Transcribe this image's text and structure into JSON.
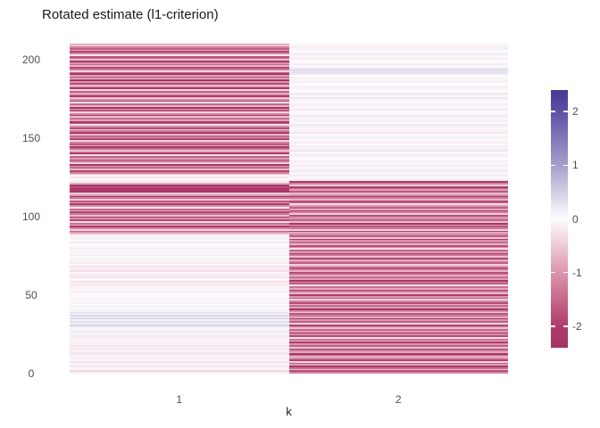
{
  "title": "Rotated estimate (l1-criterion)",
  "chart_data": {
    "type": "heatmap",
    "title": "Rotated estimate (l1-criterion)",
    "xlabel": "k",
    "ylabel": "",
    "categories": [
      "1",
      "2"
    ],
    "n_rows": 208,
    "ylim": [
      0,
      210.5
    ],
    "y_tick_labels": [
      "0",
      "50",
      "100",
      "150",
      "200"
    ],
    "y_tick_values": [
      0,
      50,
      100,
      150,
      200
    ],
    "grid": "off",
    "legend_position": "right",
    "colorscale_stops": [
      [
        -2.4,
        "#A23563"
      ],
      [
        -2.0,
        "#AE3C6A"
      ],
      [
        -1.0,
        "#DC95AE"
      ],
      [
        0.0,
        "#FEFCFE"
      ],
      [
        1.0,
        "#A69FCC"
      ],
      [
        2.0,
        "#5C51A4"
      ],
      [
        2.4,
        "#453A93"
      ]
    ],
    "series": [
      {
        "name": "k=1",
        "values": [
          -0.15,
          -0.35,
          -0.1,
          0.05,
          -0.2,
          0.1,
          -0.05,
          -0.25,
          0.05,
          -0.15,
          0.1,
          -0.1,
          0.2,
          -0.2,
          0.05,
          -0.3,
          -0.1,
          -0.25,
          0.1,
          -0.15,
          0.05,
          -0.1,
          0.15,
          -0.2,
          0.1,
          -0.05,
          0.2,
          0.05,
          -0.1,
          0.25,
          0.4,
          0.15,
          0.3,
          0.1,
          0.45,
          0.2,
          0.35,
          0.15,
          0.3,
          0.1,
          0.05,
          -0.05,
          0.1,
          0,
          -0.1,
          0.05,
          -0.05,
          0.1,
          0,
          -0.05,
          0.05,
          -0.15,
          0,
          0.1,
          -0.05,
          -0.2,
          -0.1,
          -0.3,
          -0.15,
          -0.05,
          -0.25,
          -0.1,
          -0.2,
          -0.05,
          -0.3,
          -0.15,
          -0.1,
          -0.25,
          -0.05,
          -0.2,
          0.05,
          -0.1,
          0.1,
          -0.05,
          0.15,
          0,
          -0.1,
          0.05,
          -0.15,
          0.1,
          -0.05,
          0,
          -0.2,
          0.05,
          -0.1,
          0.15,
          -0.05,
          -0.3,
          -0.9,
          -1.6,
          -0.4,
          -1.2,
          -2,
          -0.7,
          -1.4,
          -0.3,
          -1.8,
          -1,
          -2.2,
          -0.6,
          -1.3,
          -1.9,
          -0.8,
          -1.5,
          -0.2,
          -1.1,
          -2.1,
          -0.9,
          -1.7,
          -0.5,
          -1.3,
          -2.3,
          -1,
          -0.4,
          -2.2,
          -2,
          -2.3,
          -1.8,
          -2.1,
          -0.8,
          -0.15,
          -0.1,
          -0.05,
          -0.2,
          -0.1,
          -0.5,
          -1.2,
          -1.9,
          -0.7,
          -1.5,
          -1,
          -2.2,
          -0.4,
          -1.3,
          -1.8,
          -0.9,
          -1.6,
          -0.3,
          -2,
          -1.1,
          -0.6,
          -1.4,
          -2.2,
          -0.8,
          -1.7,
          -1.2,
          -0.4,
          -1.9,
          -1,
          -1.5,
          -0.7,
          -2.1,
          -1.3,
          -0.5,
          -1.8,
          -1.1,
          -0.3,
          -1.6,
          -2.3,
          -0.9,
          -1.4,
          -0.6,
          -2,
          -1.2,
          -0.4,
          -1.7,
          -1,
          -2.2,
          -0.7,
          -1.5,
          -0.2,
          -1.9,
          -1.1,
          -0.5,
          -2.1,
          -1.3,
          -0.8,
          -1.6,
          -0.3,
          -2,
          -1.2,
          -0.6,
          -1.8,
          -1,
          -2.3,
          -0.5,
          -1.4,
          -0.9,
          -2.1,
          -1.6,
          -0.4,
          -1.2,
          -1.9,
          -0.7,
          -1.5,
          -1,
          -2.2,
          -0.6,
          -1.3,
          -1.8,
          -0.2,
          -1.1,
          -2,
          -0.8,
          -1.6,
          -1.2,
          -0.5,
          -1
        ]
      },
      {
        "name": "k=2",
        "values": [
          -1.2,
          -1.8,
          -0.6,
          -1.4,
          -2.1,
          -0.9,
          -1.6,
          -0.4,
          -1.9,
          -1.1,
          -0.7,
          -1.5,
          -2.2,
          -0.8,
          -1.3,
          -1.9,
          -0.5,
          -1.6,
          -1,
          -2,
          -0.7,
          -1.4,
          -0.3,
          -1.8,
          -1.1,
          -2.2,
          -0.9,
          -1.5,
          -0.6,
          -1.2,
          -1.9,
          -0.4,
          -1.6,
          -1,
          -2.1,
          -0.8,
          -1.3,
          -1.7,
          -0.5,
          -1.1,
          -2.3,
          -0.9,
          -1.5,
          -0.7,
          -1.8,
          -1.2,
          -0.4,
          -1.6,
          -1,
          -2,
          -0.6,
          -1.3,
          -1.9,
          -0.8,
          -1.4,
          -0.3,
          -1.7,
          -1.1,
          -2.2,
          -0.9,
          -1.5,
          -0.5,
          -1.2,
          -1.8,
          -0.7,
          -1.4,
          -2.1,
          -1,
          -0.4,
          -1.6,
          -1.2,
          -0.8,
          -1.9,
          -0.6,
          -1.3,
          -2.2,
          -0.9,
          -1.5,
          -0.3,
          -1.1,
          -1.8,
          -0.7,
          -1.4,
          -1,
          -2,
          -0.5,
          -1.6,
          -1.2,
          -0.8,
          -1.9,
          -0.4,
          -1.3,
          -1.7,
          -1,
          -2.3,
          -0.6,
          -1.5,
          -1.1,
          -0.9,
          -1.8,
          -0.5,
          -1.2,
          -2.1,
          -0.8,
          -1.6,
          -1,
          -0.3,
          -1.4,
          -1.9,
          -0.7,
          -1.3,
          -2.2,
          -1.1,
          -0.6,
          -1.7,
          -0.9,
          -1.5,
          -2,
          -0.4,
          -1.2,
          -2.1,
          0.3,
          0.1,
          -0.05,
          0.15,
          -0.1,
          0.05,
          -0.2,
          0.1,
          -0.05,
          0.2,
          -0.1,
          0.05,
          -0.15,
          0.1,
          0,
          -0.1,
          0.15,
          -0.05,
          0.05,
          -0.25,
          0.1,
          -0.1,
          0.2,
          0,
          -0.15,
          0.05,
          -0.05,
          0.15,
          -0.1,
          0,
          -0.2,
          0.1,
          -0.05,
          0.05,
          -0.15,
          0.2,
          0,
          -0.1,
          0.1,
          -0.05,
          0.15,
          -0.2,
          0.05,
          0,
          -0.1,
          0.25,
          -0.05,
          0.1,
          -0.15,
          0.05,
          0,
          -0.1,
          0.2,
          -0.05,
          0.1,
          -0.2,
          0,
          0.05,
          -0.1,
          0.15,
          -0.05,
          0,
          -0.15,
          0.1,
          0.05,
          -0.1,
          0,
          0.2,
          0.3,
          0.25,
          0.35,
          0.1,
          -0.05,
          0.15,
          -0.1,
          0,
          0.1,
          -0.2,
          0.05,
          -0.1,
          0.15,
          0,
          -0.05,
          0.1,
          -0.15,
          0.05,
          -0.1
        ]
      }
    ]
  },
  "legend": {
    "range": [
      -2.4,
      2.4
    ],
    "tick_labels": [
      "2",
      "1",
      "0",
      "-1",
      "-2"
    ],
    "tick_values": [
      2,
      1,
      0,
      -1,
      -2
    ]
  },
  "colors": {
    "background": "#ffffff",
    "axis_text": "#4d4d4d",
    "title_text": "#1a1a1a",
    "palette_low": "#A23563",
    "palette_mid": "#FEFCFE",
    "palette_high": "#453A93"
  }
}
